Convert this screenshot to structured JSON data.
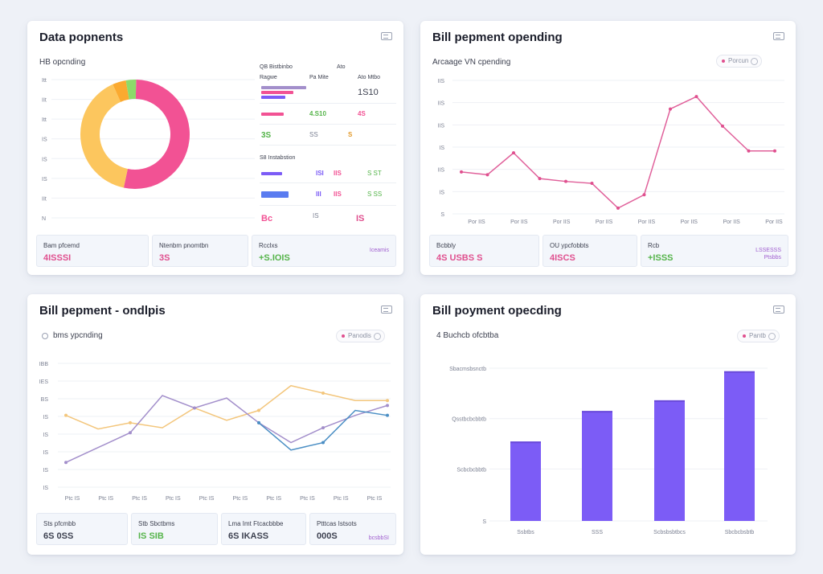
{
  "colors": {
    "pink": "#f25294",
    "yellow": "#fcc65e",
    "orange": "#fbaa30",
    "green": "#8ddb6a",
    "purple": "#7c5cf6",
    "tan": "#f3c67c",
    "lavender": "#a38fcb",
    "blue": "#4a8ec4"
  },
  "cards": {
    "donut": {
      "title": "Data popnents",
      "subtitle": "HB opcnding",
      "y_ticks": [
        "Itt",
        "IIt",
        "Itt",
        "IS",
        "IS",
        "IS",
        "IIt",
        "N"
      ],
      "legend": {
        "header_a": "QB Bistbinbo",
        "header_b": "Ato",
        "col_1": "Ragwe",
        "col_2": "Pa Mite",
        "col_3": "Ato Mtbo",
        "row1_val": "1S10",
        "row2_v1": "4.S10",
        "row2_v2": "4S",
        "row3_v1": "3S",
        "row3_v2": "SS",
        "row3_v3": "S",
        "section2": "S8 Instabstion",
        "row4_v1": "ISI",
        "row4_v2": "IIS",
        "row4_v3": "S ST",
        "row5_v1": "III",
        "row5_v2": "IIS",
        "row5_v3": "S SS",
        "row6_v1": "Bc",
        "row6_v2": "IS",
        "row6_v3": "IS"
      },
      "stats": [
        {
          "label": "Bam pfcemd",
          "value": "4ISSSI"
        },
        {
          "label": "Ntenbm pnomtbn",
          "value": "3S"
        },
        {
          "label": "Rcclxs",
          "value": "+S.IOIS",
          "note": "Iceamis"
        }
      ]
    },
    "line_pink": {
      "title": "Bill pepment opending",
      "subtitle": "Arcaage VN cpending",
      "pill": "Porcun",
      "y_ticks": [
        "IIS",
        "IIS",
        "IIS",
        "IS",
        "IIS",
        "IS",
        "S"
      ],
      "x_ticks": [
        "Por IIS",
        "Por IIS",
        "Por IIS",
        "Por IIS",
        "Por IIS",
        "Por IIS",
        "Por IIS",
        "Por IIS"
      ],
      "stats": [
        {
          "label": "Bcbbly",
          "value": "4S USBS S"
        },
        {
          "label": "OU ypcfobbts",
          "value": "4ISCS"
        },
        {
          "label": "Rcb",
          "value": "+ISSS",
          "note": "LSSESSS Ptsbbs"
        }
      ]
    },
    "line_multi": {
      "title": "Bill pepment - ondlpis",
      "subtitle": "bms ypcnding",
      "pill": "Panodis",
      "y_ticks": [
        "IBB",
        "IES",
        "BS",
        "IS",
        "IS",
        "IS",
        "IS",
        "IS"
      ],
      "x_ticks": [
        "Ptc IS",
        "Ptc IS",
        "Ptc IS",
        "Ptc IS",
        "Ptc IS",
        "Ptc IS",
        "Ptc IS",
        "Ptc IS",
        "Ptc IS",
        "Ptc IS"
      ],
      "stats": [
        {
          "label": "Sts pfcmbb",
          "value": "6S 0SS"
        },
        {
          "label": "Stb Sbctbms",
          "value": "IS SIB"
        },
        {
          "label": "Lma Imt Ftcacbbbe",
          "value": "6S IKASS"
        },
        {
          "label": "Ptttcas Istsots",
          "value": "000S",
          "note": "bcsbbSI"
        }
      ]
    },
    "bar": {
      "title": "Bill poyment opecding",
      "subtitle": "4 Buchcb ofcbtba",
      "pill": "Pantb",
      "y_ticks": [
        "Sbacmsbsnctb",
        "Qsstbcbcbbtb",
        "Scbcbcbbtb",
        "S"
      ],
      "x_labels": [
        "Ssbtbs",
        "SSS",
        "Scbsbsbtbcs",
        "Sbcbcbsbtb"
      ]
    }
  },
  "chart_data": [
    {
      "type": "pie",
      "title": "Data popnents",
      "subtitle": "HB opcnding",
      "values": [
        53,
        40,
        4,
        3
      ],
      "colors": [
        "#f25294",
        "#fcc65e",
        "#fbaa30",
        "#8ddb6a"
      ],
      "donut": true
    },
    {
      "type": "line",
      "title": "Bill pepment opending",
      "x": [
        0,
        1,
        2,
        3,
        4,
        5,
        6,
        7,
        8,
        9,
        10,
        11,
        12
      ],
      "series": [
        {
          "values": [
            44,
            41,
            64,
            37,
            34,
            32,
            6,
            20,
            110,
            123,
            92,
            66,
            66
          ]
        }
      ],
      "ylim": [
        0,
        140
      ],
      "grid": true
    },
    {
      "type": "line",
      "title": "Bill pepment - ondlpis",
      "x": [
        0,
        1,
        2,
        3,
        4,
        5,
        6,
        7,
        8,
        9,
        10
      ],
      "series": [
        {
          "values": [
            58,
            47,
            52,
            48,
            64,
            54,
            62,
            82,
            76,
            70,
            70
          ],
          "color": "#f3c67c"
        },
        {
          "values": [
            20,
            32,
            44,
            74,
            64,
            72,
            52,
            36,
            48,
            58,
            66
          ],
          "color": "#a38fcb"
        },
        {
          "values": [
            null,
            null,
            null,
            null,
            null,
            null,
            52,
            30,
            36,
            62,
            58
          ],
          "color": "#4a8ec4"
        }
      ],
      "ylim": [
        0,
        100
      ],
      "grid": true
    },
    {
      "type": "bar",
      "title": "Bill poyment opecding",
      "categories": [
        "Ssbtbs",
        "SSS",
        "Scbsbsbtbcs",
        "Sbcbcbsbtb"
      ],
      "values": [
        52,
        72,
        79,
        98
      ],
      "ylim": [
        0,
        100
      ],
      "color": "#7c5cf6"
    }
  ]
}
